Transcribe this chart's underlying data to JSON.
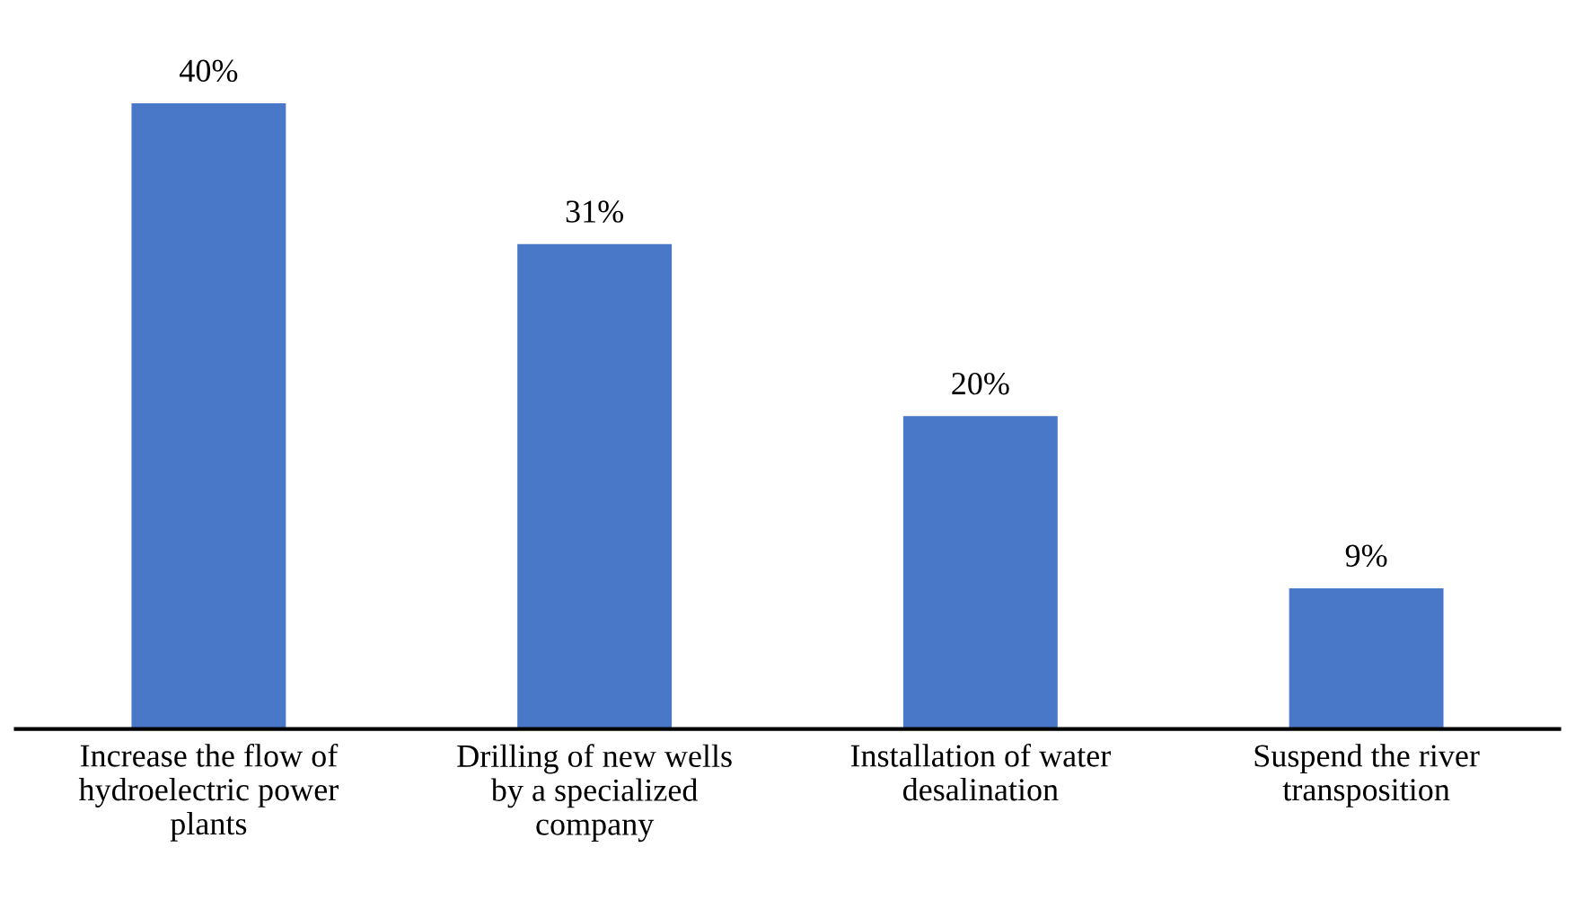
{
  "chart_data": {
    "type": "bar",
    "categories": [
      "Increase the flow of\nhydroelectric power\nplants",
      "Drilling of new wells\nby a specialized\ncompany",
      "Installation of water\ndesalination",
      "Suspend the river\ntransposition"
    ],
    "values": [
      40,
      31,
      20,
      9
    ],
    "value_labels": [
      "40%",
      "31%",
      "20%",
      "9%"
    ],
    "color": "#4a78c8",
    "grid": false,
    "legend": false
  }
}
